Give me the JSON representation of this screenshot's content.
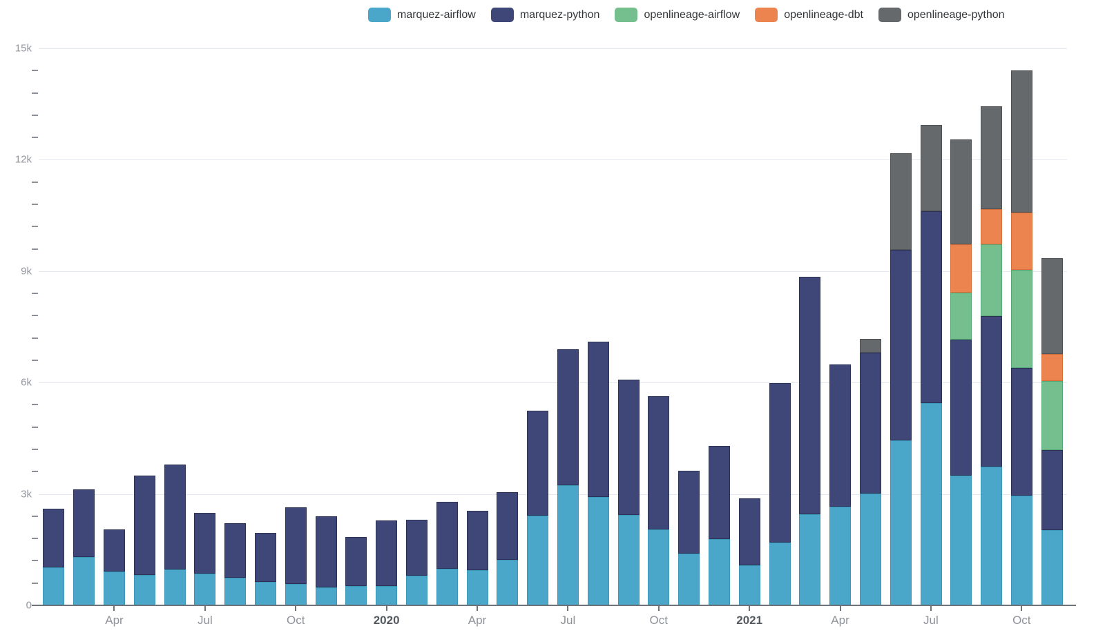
{
  "accent_colors": {
    "grid": "#E4E8F1",
    "axis": "#6E7279",
    "tick_label": "#94979E",
    "year_label": "#565A61",
    "legend_text": "#333639"
  },
  "legend": {
    "items": [
      {
        "label": "marquez-airflow",
        "color": "#4BA7C9"
      },
      {
        "label": "marquez-python",
        "color": "#3F4778"
      },
      {
        "label": "openlineage-airflow",
        "color": "#75BE8D"
      },
      {
        "label": "openlineage-dbt",
        "color": "#EC8450"
      },
      {
        "label": "openlineage-python",
        "color": "#66696C"
      }
    ]
  },
  "y_axis": {
    "max": 15000,
    "minor_step": 600,
    "ticks": [
      {
        "value": 0,
        "label": "0"
      },
      {
        "value": 3000,
        "label": "3k"
      },
      {
        "value": 6000,
        "label": "6k"
      },
      {
        "value": 9000,
        "label": "9k"
      },
      {
        "value": 12000,
        "label": "12k"
      },
      {
        "value": 15000,
        "label": "15k"
      }
    ]
  },
  "x_axis": {
    "tick_labels": [
      {
        "index": 2,
        "label": "Apr",
        "bold": false
      },
      {
        "index": 5,
        "label": "Jul",
        "bold": false
      },
      {
        "index": 8,
        "label": "Oct",
        "bold": false
      },
      {
        "index": 11,
        "label": "2020",
        "bold": true
      },
      {
        "index": 14,
        "label": "Apr",
        "bold": false
      },
      {
        "index": 17,
        "label": "Jul",
        "bold": false
      },
      {
        "index": 20,
        "label": "Oct",
        "bold": false
      },
      {
        "index": 23,
        "label": "2021",
        "bold": true
      },
      {
        "index": 26,
        "label": "Apr",
        "bold": false
      },
      {
        "index": 29,
        "label": "Jul",
        "bold": false
      },
      {
        "index": 32,
        "label": "Oct",
        "bold": false
      }
    ]
  },
  "chart_data": {
    "type": "bar",
    "stacked": true,
    "grid": true,
    "legend_position": "top",
    "ylim": [
      0,
      15000
    ],
    "y_ticks": [
      "0",
      "3k",
      "6k",
      "9k",
      "12k",
      "15k"
    ],
    "xlabel": "",
    "ylabel": "",
    "title": "",
    "categories": [
      "Feb 2019",
      "Mar 2019",
      "Apr 2019",
      "May 2019",
      "Jun 2019",
      "Jul 2019",
      "Aug 2019",
      "Sep 2019",
      "Oct 2019",
      "Nov 2019",
      "Dec 2019",
      "Jan 2020",
      "Feb 2020",
      "Mar 2020",
      "Apr 2020",
      "May 2020",
      "Jun 2020",
      "Jul 2020",
      "Aug 2020",
      "Sep 2020",
      "Oct 2020",
      "Nov 2020",
      "Dec 2020",
      "Jan 2021",
      "Feb 2021",
      "Mar 2021",
      "Apr 2021",
      "May 2021",
      "Jun 2021",
      "Jul 2021",
      "Aug 2021",
      "Sep 2021",
      "Oct 2021",
      "Nov 2021"
    ],
    "series": [
      {
        "name": "marquez-airflow",
        "color": "#4BA7C9",
        "border": "#3C96B8",
        "values": [
          1030,
          1310,
          910,
          820,
          970,
          850,
          750,
          630,
          580,
          490,
          520,
          520,
          800,
          980,
          940,
          1230,
          2420,
          3240,
          2920,
          2430,
          2050,
          1390,
          1790,
          1080,
          1700,
          2460,
          2650,
          3020,
          4440,
          5450,
          3490,
          3730,
          2960,
          2030
        ]
      },
      {
        "name": "marquez-python",
        "color": "#3F4778",
        "border": "#2C3156",
        "values": [
          1580,
          1810,
          1130,
          2670,
          2830,
          1650,
          1460,
          1320,
          2060,
          1910,
          1320,
          1770,
          1510,
          1810,
          1600,
          1810,
          2830,
          3650,
          4180,
          3650,
          3590,
          2230,
          2510,
          1810,
          4290,
          6380,
          3830,
          3790,
          5130,
          5160,
          3670,
          4050,
          3440,
          2150
        ]
      },
      {
        "name": "openlineage-airflow",
        "color": "#75BE8D",
        "border": "#57A774",
        "values": [
          0,
          0,
          0,
          0,
          0,
          0,
          0,
          0,
          0,
          0,
          0,
          0,
          0,
          0,
          0,
          0,
          0,
          0,
          0,
          0,
          0,
          0,
          0,
          0,
          0,
          0,
          0,
          0,
          0,
          0,
          1270,
          1940,
          2640,
          1870
        ]
      },
      {
        "name": "openlineage-dbt",
        "color": "#EC8450",
        "border": "#D46E3C",
        "values": [
          0,
          0,
          0,
          0,
          0,
          0,
          0,
          0,
          0,
          0,
          0,
          0,
          0,
          0,
          0,
          0,
          0,
          0,
          0,
          0,
          0,
          0,
          0,
          0,
          0,
          0,
          0,
          0,
          0,
          0,
          1290,
          950,
          1530,
          710
        ]
      },
      {
        "name": "openlineage-python",
        "color": "#66696C",
        "border": "#4F5255",
        "values": [
          0,
          0,
          0,
          0,
          0,
          0,
          0,
          0,
          0,
          0,
          0,
          0,
          0,
          0,
          0,
          0,
          0,
          0,
          0,
          0,
          0,
          0,
          0,
          0,
          0,
          0,
          0,
          360,
          2600,
          2320,
          2820,
          2770,
          3840,
          2590
        ]
      }
    ]
  }
}
